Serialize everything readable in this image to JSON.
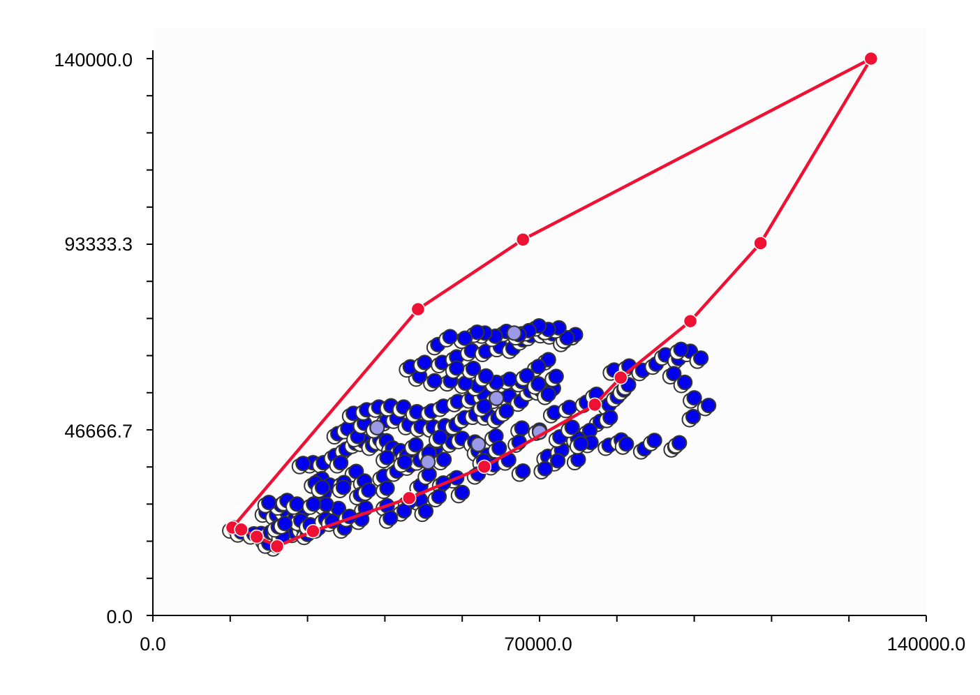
{
  "chart_data": {
    "type": "scatter",
    "title": "",
    "xlabel": "",
    "ylabel": "",
    "xlim": [
      0,
      140000
    ],
    "ylim": [
      0,
      140000
    ],
    "x_tick_labels": [
      {
        "value": 0,
        "label": "0.0"
      },
      {
        "value": 70000,
        "label": "70000.0"
      },
      {
        "value": 140000,
        "label": "140000.0"
      }
    ],
    "y_tick_labels": [
      {
        "value": 0,
        "label": "0.0"
      },
      {
        "value": 46666.7,
        "label": "46666.7"
      },
      {
        "value": 93333.3,
        "label": "93333.3"
      },
      {
        "value": 140000,
        "label": "140000.0"
      }
    ],
    "x_minor_ticks": [
      14000,
      28000,
      42000,
      56000,
      84000,
      98000,
      112000,
      126000
    ],
    "y_minor_ticks": [
      9333.3,
      18666.7,
      28000,
      37333.3,
      56000,
      65333.3,
      74666.7,
      84000,
      102666.7,
      112000,
      121333.3,
      130666.7
    ],
    "grid": false,
    "colors": {
      "point_fill": "#0000ee",
      "point_fill_faded": "#9a9ae8",
      "point_shadow": "#ffffff",
      "point_outline": "#333333",
      "hull_line": "#ee1133",
      "hull_vertex": "#ee1133"
    },
    "series": [
      {
        "type": "scatter",
        "points": [
          [
            14600,
            22000
          ],
          [
            16000,
            21000
          ],
          [
            18300,
            20500
          ],
          [
            20600,
            19200
          ],
          [
            22400,
            17500
          ],
          [
            21000,
            18200
          ],
          [
            19600,
            20600
          ],
          [
            21300,
            20900
          ],
          [
            22700,
            21300
          ],
          [
            24100,
            21700
          ],
          [
            25800,
            20900
          ],
          [
            27200,
            22000
          ],
          [
            28000,
            20400
          ],
          [
            29100,
            22000
          ],
          [
            23500,
            20100
          ],
          [
            20500,
            26000
          ],
          [
            22400,
            25300
          ],
          [
            24100,
            26300
          ],
          [
            25800,
            24600
          ],
          [
            27200,
            26400
          ],
          [
            23200,
            27800
          ],
          [
            21000,
            28400
          ],
          [
            24300,
            28900
          ],
          [
            26100,
            28000
          ],
          [
            26800,
            23900
          ],
          [
            30000,
            22000
          ],
          [
            28500,
            22800
          ],
          [
            22700,
            22300
          ],
          [
            23900,
            23100
          ],
          [
            29000,
            38400
          ],
          [
            30900,
            38400
          ],
          [
            33000,
            40200
          ],
          [
            35000,
            41800
          ],
          [
            36700,
            43300
          ],
          [
            38200,
            43800
          ],
          [
            39800,
            42800
          ],
          [
            41100,
            44200
          ],
          [
            42300,
            43900
          ],
          [
            43400,
            42100
          ],
          [
            44800,
            41400
          ],
          [
            46000,
            40200
          ],
          [
            47600,
            39400
          ],
          [
            49600,
            39900
          ],
          [
            51200,
            42100
          ],
          [
            52100,
            44600
          ],
          [
            53500,
            45700
          ],
          [
            54300,
            43600
          ],
          [
            33500,
            45700
          ],
          [
            35300,
            47000
          ],
          [
            37100,
            45000
          ],
          [
            38300,
            48300
          ],
          [
            40600,
            47200
          ],
          [
            42400,
            49000
          ],
          [
            44200,
            49600
          ],
          [
            46400,
            48000
          ],
          [
            48600,
            47500
          ],
          [
            50800,
            47400
          ],
          [
            52900,
            47700
          ],
          [
            54900,
            48000
          ],
          [
            56500,
            49700
          ],
          [
            58500,
            50600
          ],
          [
            60600,
            50400
          ],
          [
            62500,
            49700
          ],
          [
            36300,
            50800
          ],
          [
            38700,
            51700
          ],
          [
            40900,
            52400
          ],
          [
            43100,
            52700
          ],
          [
            45400,
            52400
          ],
          [
            47800,
            51200
          ],
          [
            50500,
            51400
          ],
          [
            52600,
            52600
          ],
          [
            55200,
            53800
          ],
          [
            57800,
            54700
          ],
          [
            60000,
            55500
          ],
          [
            62200,
            54600
          ],
          [
            64500,
            55200
          ],
          [
            66700,
            53900
          ],
          [
            68400,
            56500
          ],
          [
            70200,
            56700
          ],
          [
            72500,
            57100
          ],
          [
            66800,
            58800
          ],
          [
            64600,
            59400
          ],
          [
            62200,
            58600
          ],
          [
            58900,
            57800
          ],
          [
            56600,
            58400
          ],
          [
            53900,
            59000
          ],
          [
            51000,
            59000
          ],
          [
            48300,
            60200
          ],
          [
            46600,
            62500
          ],
          [
            49200,
            63600
          ],
          [
            52400,
            63600
          ],
          [
            55000,
            65000
          ],
          [
            57700,
            66600
          ],
          [
            60300,
            66400
          ],
          [
            62900,
            67600
          ],
          [
            65200,
            67200
          ],
          [
            67000,
            69300
          ],
          [
            68500,
            70400
          ],
          [
            66700,
            70800
          ],
          [
            70800,
            71100
          ],
          [
            72400,
            70800
          ],
          [
            74500,
            68900
          ],
          [
            76500,
            70600
          ],
          [
            75000,
            69800
          ],
          [
            73500,
            72300
          ],
          [
            71600,
            71900
          ],
          [
            69900,
            72800
          ],
          [
            68100,
            71600
          ],
          [
            66300,
            70600
          ],
          [
            64000,
            71400
          ],
          [
            62000,
            70200
          ],
          [
            60100,
            71000
          ],
          [
            58700,
            71200
          ],
          [
            56500,
            69700
          ],
          [
            71600,
            64300
          ],
          [
            69800,
            62600
          ],
          [
            67700,
            60300
          ],
          [
            69800,
            58200
          ],
          [
            73000,
            60100
          ],
          [
            71600,
            55600
          ],
          [
            60300,
            60200
          ],
          [
            58000,
            62100
          ],
          [
            55000,
            62200
          ],
          [
            51600,
            68100
          ],
          [
            53800,
            70100
          ],
          [
            34000,
            38400
          ],
          [
            36800,
            36200
          ],
          [
            30600,
            34400
          ],
          [
            32000,
            32800
          ],
          [
            34600,
            33400
          ],
          [
            38300,
            33800
          ],
          [
            41800,
            35000
          ],
          [
            44200,
            36300
          ],
          [
            46600,
            37800
          ],
          [
            48400,
            39100
          ],
          [
            27200,
            38200
          ],
          [
            29400,
            33300
          ],
          [
            31000,
            30800
          ],
          [
            30700,
            32200
          ],
          [
            37600,
            30400
          ],
          [
            39100,
            31500
          ],
          [
            34500,
            32200
          ],
          [
            38500,
            27000
          ],
          [
            42400,
            32000
          ],
          [
            42400,
            27600
          ],
          [
            50000,
            40800
          ],
          [
            52700,
            39200
          ],
          [
            42400,
            39700
          ],
          [
            45600,
            38600
          ],
          [
            47600,
            42900
          ],
          [
            52000,
            44800
          ],
          [
            56000,
            44500
          ],
          [
            60000,
            52600
          ],
          [
            64000,
            51400
          ],
          [
            66800,
            47100
          ],
          [
            62100,
            45100
          ],
          [
            58300,
            43600
          ],
          [
            58900,
            41400
          ],
          [
            60600,
            40300
          ],
          [
            62700,
            42100
          ],
          [
            66300,
            43600
          ],
          [
            70000,
            46600
          ],
          [
            72700,
            51000
          ],
          [
            75400,
            52300
          ],
          [
            78500,
            53600
          ],
          [
            80300,
            55600
          ],
          [
            82600,
            53000
          ],
          [
            84100,
            55000
          ],
          [
            85300,
            56700
          ],
          [
            86100,
            58000
          ],
          [
            83500,
            61700
          ],
          [
            86200,
            62700
          ],
          [
            88700,
            61600
          ],
          [
            91100,
            63200
          ],
          [
            92800,
            65500
          ],
          [
            95200,
            64600
          ],
          [
            97300,
            66400
          ],
          [
            95600,
            66900
          ],
          [
            99200,
            64700
          ],
          [
            94300,
            60800
          ],
          [
            96300,
            58600
          ],
          [
            98000,
            54700
          ],
          [
            100600,
            52800
          ],
          [
            97800,
            50000
          ],
          [
            81000,
            48800
          ],
          [
            79100,
            46500
          ],
          [
            76900,
            44500
          ],
          [
            79300,
            43500
          ],
          [
            82600,
            42800
          ],
          [
            84800,
            44100
          ],
          [
            85700,
            43100
          ],
          [
            89000,
            41900
          ],
          [
            90800,
            44000
          ],
          [
            94500,
            42400
          ],
          [
            95300,
            43400
          ],
          [
            71500,
            40000
          ],
          [
            74000,
            41600
          ],
          [
            73300,
            38900
          ],
          [
            77000,
            39200
          ],
          [
            73700,
            44900
          ],
          [
            75900,
            47300
          ],
          [
            82800,
            49800
          ],
          [
            77500,
            43200
          ],
          [
            67000,
            36300
          ],
          [
            71000,
            36900
          ],
          [
            61800,
            37900
          ],
          [
            64400,
            39100
          ],
          [
            59900,
            38900
          ],
          [
            55000,
            34600
          ],
          [
            58900,
            35600
          ],
          [
            48500,
            32700
          ],
          [
            52600,
            33300
          ],
          [
            50000,
            35500
          ],
          [
            56000,
            30900
          ],
          [
            51800,
            29900
          ],
          [
            48400,
            29100
          ],
          [
            46400,
            28600
          ],
          [
            45500,
            26300
          ],
          [
            49400,
            26200
          ],
          [
            43000,
            24500
          ],
          [
            37800,
            24200
          ],
          [
            33600,
            26900
          ],
          [
            31400,
            27900
          ],
          [
            29100,
            28000
          ],
          [
            31300,
            24200
          ],
          [
            34700,
            22000
          ],
          [
            32500,
            23700
          ],
          [
            35600,
            24900
          ]
        ]
      },
      {
        "type": "scatter",
        "role": "faded",
        "points": [
          [
            65400,
            71000
          ],
          [
            49800,
            38600
          ],
          [
            58900,
            43000
          ],
          [
            70000,
            46100
          ],
          [
            40600,
            47200
          ],
          [
            62200,
            54600
          ]
        ]
      },
      {
        "type": "line",
        "role": "hull",
        "closed": true,
        "points": [
          [
            14400,
            22100
          ],
          [
            16000,
            21600
          ],
          [
            18800,
            19800
          ],
          [
            22500,
            17400
          ],
          [
            29000,
            21200
          ],
          [
            46400,
            29500
          ],
          [
            60000,
            37400
          ],
          [
            80000,
            53000
          ],
          [
            84700,
            59800
          ],
          [
            97300,
            74000
          ],
          [
            110000,
            93600
          ],
          [
            130000,
            140000
          ],
          [
            67000,
            94500
          ],
          [
            48000,
            77000
          ],
          [
            14400,
            22100
          ]
        ]
      }
    ]
  }
}
